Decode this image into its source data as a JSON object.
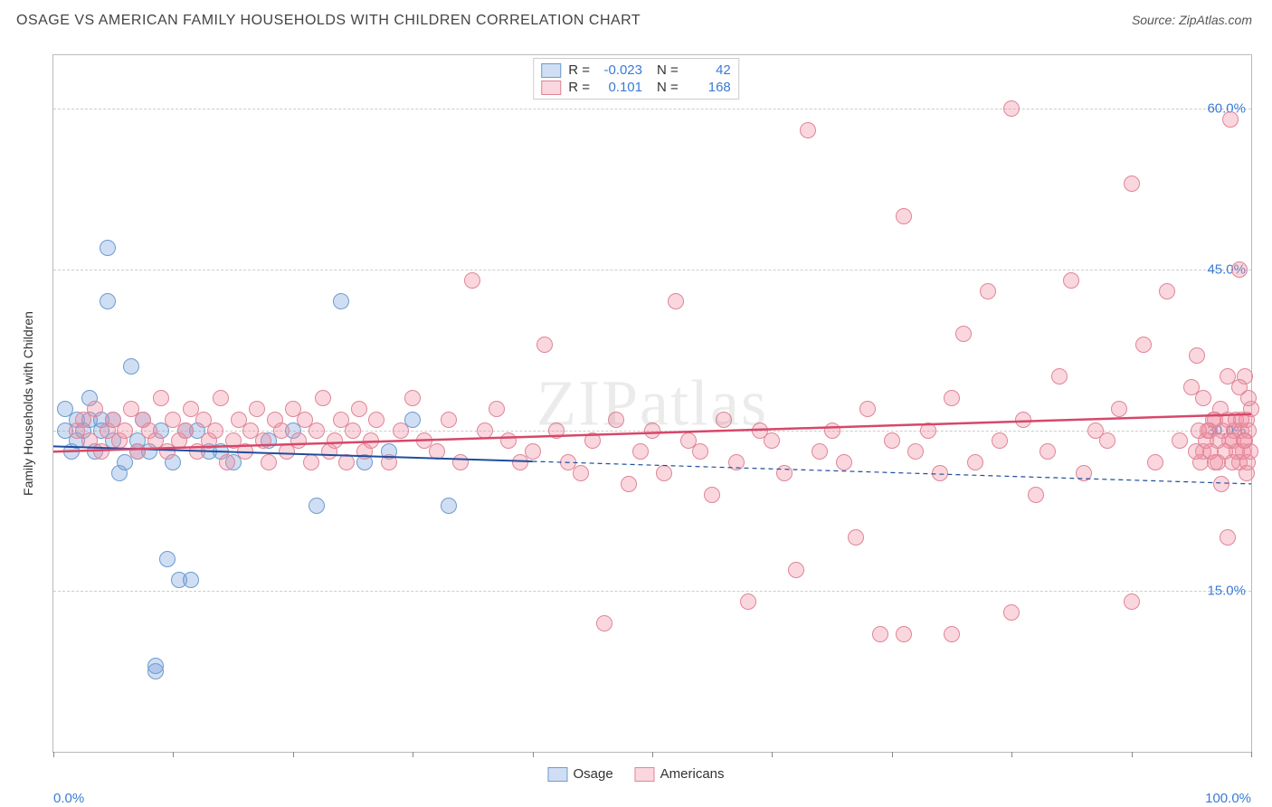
{
  "title": "OSAGE VS AMERICAN FAMILY HOUSEHOLDS WITH CHILDREN CORRELATION CHART",
  "source": "Source: ZipAtlas.com",
  "y_axis_label": "Family Households with Children",
  "watermark": "ZIPatlas",
  "chart": {
    "type": "scatter",
    "xlim": [
      0,
      100
    ],
    "ylim": [
      0,
      65
    ],
    "x_ticks": [
      0,
      10,
      20,
      30,
      40,
      50,
      60,
      70,
      80,
      90,
      100
    ],
    "x_tick_labels": {
      "0": "0.0%",
      "100": "100.0%"
    },
    "y_grid": [
      15,
      30,
      45,
      60
    ],
    "y_tick_labels": [
      "15.0%",
      "30.0%",
      "45.0%",
      "60.0%"
    ],
    "background_color": "#ffffff",
    "grid_color": "#cccccc",
    "axis_color": "#bbbbbb",
    "tick_label_color": "#3a7bd5",
    "point_radius": 9,
    "series": [
      {
        "name": "Osage",
        "fill": "rgba(120,160,220,0.35)",
        "stroke": "#6b9bd1",
        "R": "-0.023",
        "N": "42",
        "trend": {
          "y_at_x0": 28.5,
          "y_at_x100": 25.0,
          "solid_until_x": 40,
          "color": "#1f4e9c",
          "width": 2
        },
        "points": [
          [
            1,
            30
          ],
          [
            1,
            32
          ],
          [
            1.5,
            28
          ],
          [
            2,
            31
          ],
          [
            2,
            29
          ],
          [
            2.5,
            30
          ],
          [
            3,
            33
          ],
          [
            3,
            31
          ],
          [
            3.5,
            28
          ],
          [
            4,
            31
          ],
          [
            4,
            30
          ],
          [
            4.5,
            42
          ],
          [
            4.5,
            47
          ],
          [
            5,
            29
          ],
          [
            5,
            31
          ],
          [
            5.5,
            26
          ],
          [
            6,
            27
          ],
          [
            6.5,
            36
          ],
          [
            7,
            29
          ],
          [
            7,
            28
          ],
          [
            7.5,
            31
          ],
          [
            8,
            28
          ],
          [
            8.5,
            7.5
          ],
          [
            8.5,
            8
          ],
          [
            9,
            30
          ],
          [
            9.5,
            18
          ],
          [
            10,
            27
          ],
          [
            10.5,
            16
          ],
          [
            11,
            30
          ],
          [
            11.5,
            16
          ],
          [
            12,
            30
          ],
          [
            13,
            28
          ],
          [
            14,
            28
          ],
          [
            15,
            27
          ],
          [
            18,
            29
          ],
          [
            20,
            30
          ],
          [
            22,
            23
          ],
          [
            24,
            42
          ],
          [
            26,
            27
          ],
          [
            28,
            28
          ],
          [
            30,
            31
          ],
          [
            33,
            23
          ]
        ]
      },
      {
        "name": "Americans",
        "fill": "rgba(240,140,160,0.35)",
        "stroke": "#e08596",
        "R": "0.101",
        "N": "168",
        "trend": {
          "y_at_x0": 28.0,
          "y_at_x100": 31.5,
          "solid_until_x": 100,
          "color": "#d6486a",
          "width": 2.5
        },
        "points": [
          [
            2,
            30
          ],
          [
            2.5,
            31
          ],
          [
            3,
            29
          ],
          [
            3.5,
            32
          ],
          [
            4,
            28
          ],
          [
            4.5,
            30
          ],
          [
            5,
            31
          ],
          [
            5.5,
            29
          ],
          [
            6,
            30
          ],
          [
            6.5,
            32
          ],
          [
            7,
            28
          ],
          [
            7.5,
            31
          ],
          [
            8,
            30
          ],
          [
            8.5,
            29
          ],
          [
            9,
            33
          ],
          [
            9.5,
            28
          ],
          [
            10,
            31
          ],
          [
            10.5,
            29
          ],
          [
            11,
            30
          ],
          [
            11.5,
            32
          ],
          [
            12,
            28
          ],
          [
            12.5,
            31
          ],
          [
            13,
            29
          ],
          [
            13.5,
            30
          ],
          [
            14,
            33
          ],
          [
            14.5,
            27
          ],
          [
            15,
            29
          ],
          [
            15.5,
            31
          ],
          [
            16,
            28
          ],
          [
            16.5,
            30
          ],
          [
            17,
            32
          ],
          [
            17.5,
            29
          ],
          [
            18,
            27
          ],
          [
            18.5,
            31
          ],
          [
            19,
            30
          ],
          [
            19.5,
            28
          ],
          [
            20,
            32
          ],
          [
            20.5,
            29
          ],
          [
            21,
            31
          ],
          [
            21.5,
            27
          ],
          [
            22,
            30
          ],
          [
            22.5,
            33
          ],
          [
            23,
            28
          ],
          [
            23.5,
            29
          ],
          [
            24,
            31
          ],
          [
            24.5,
            27
          ],
          [
            25,
            30
          ],
          [
            25.5,
            32
          ],
          [
            26,
            28
          ],
          [
            26.5,
            29
          ],
          [
            27,
            31
          ],
          [
            28,
            27
          ],
          [
            29,
            30
          ],
          [
            30,
            33
          ],
          [
            31,
            29
          ],
          [
            32,
            28
          ],
          [
            33,
            31
          ],
          [
            34,
            27
          ],
          [
            35,
            44
          ],
          [
            36,
            30
          ],
          [
            37,
            32
          ],
          [
            38,
            29
          ],
          [
            39,
            27
          ],
          [
            40,
            28
          ],
          [
            41,
            38
          ],
          [
            42,
            30
          ],
          [
            43,
            27
          ],
          [
            44,
            26
          ],
          [
            45,
            29
          ],
          [
            46,
            12
          ],
          [
            47,
            31
          ],
          [
            48,
            25
          ],
          [
            49,
            28
          ],
          [
            50,
            30
          ],
          [
            51,
            26
          ],
          [
            52,
            42
          ],
          [
            53,
            29
          ],
          [
            54,
            28
          ],
          [
            55,
            24
          ],
          [
            56,
            31
          ],
          [
            57,
            27
          ],
          [
            58,
            14
          ],
          [
            59,
            30
          ],
          [
            60,
            29
          ],
          [
            61,
            26
          ],
          [
            62,
            17
          ],
          [
            63,
            58
          ],
          [
            64,
            28
          ],
          [
            65,
            30
          ],
          [
            66,
            27
          ],
          [
            67,
            20
          ],
          [
            68,
            32
          ],
          [
            69,
            11
          ],
          [
            70,
            29
          ],
          [
            71,
            50
          ],
          [
            71,
            11
          ],
          [
            72,
            28
          ],
          [
            73,
            30
          ],
          [
            74,
            26
          ],
          [
            75,
            33
          ],
          [
            75,
            11
          ],
          [
            76,
            39
          ],
          [
            77,
            27
          ],
          [
            78,
            43
          ],
          [
            79,
            29
          ],
          [
            80,
            60
          ],
          [
            80,
            13
          ],
          [
            81,
            31
          ],
          [
            82,
            24
          ],
          [
            83,
            28
          ],
          [
            84,
            35
          ],
          [
            85,
            44
          ],
          [
            86,
            26
          ],
          [
            87,
            30
          ],
          [
            88,
            29
          ],
          [
            89,
            32
          ],
          [
            90,
            53
          ],
          [
            90,
            14
          ],
          [
            91,
            38
          ],
          [
            92,
            27
          ],
          [
            93,
            43
          ],
          [
            94,
            29
          ],
          [
            95,
            34
          ],
          [
            95.5,
            37
          ],
          [
            96,
            28
          ],
          [
            96.5,
            30
          ],
          [
            97,
            31
          ],
          [
            97.2,
            27
          ],
          [
            97.5,
            25
          ],
          [
            98,
            35
          ],
          [
            98,
            20
          ],
          [
            98.3,
            59
          ],
          [
            98.5,
            29
          ],
          [
            98.7,
            31
          ],
          [
            99,
            27
          ],
          [
            99,
            45
          ],
          [
            99.2,
            30
          ],
          [
            99.3,
            28
          ],
          [
            99.5,
            35
          ],
          [
            99.5,
            29
          ],
          [
            99.6,
            31
          ],
          [
            99.7,
            27
          ],
          [
            99.8,
            30
          ],
          [
            99.9,
            28
          ],
          [
            100,
            32
          ],
          [
            99.8,
            33
          ],
          [
            99.6,
            26
          ],
          [
            99.4,
            29
          ],
          [
            99.2,
            31
          ],
          [
            99,
            34
          ],
          [
            98.8,
            28
          ],
          [
            98.6,
            30
          ],
          [
            98.4,
            27
          ],
          [
            98.2,
            29
          ],
          [
            98,
            31
          ],
          [
            97.8,
            28
          ],
          [
            97.6,
            30
          ],
          [
            97.4,
            32
          ],
          [
            97.2,
            29
          ],
          [
            97,
            27
          ],
          [
            96.8,
            31
          ],
          [
            96.6,
            28
          ],
          [
            96.4,
            30
          ],
          [
            96.2,
            29
          ],
          [
            96,
            33
          ],
          [
            95.8,
            27
          ],
          [
            95.6,
            30
          ],
          [
            95.4,
            28
          ]
        ]
      }
    ]
  },
  "legend_top_labels": {
    "R": "R =",
    "N": "N ="
  },
  "legend_bottom": [
    "Osage",
    "Americans"
  ]
}
